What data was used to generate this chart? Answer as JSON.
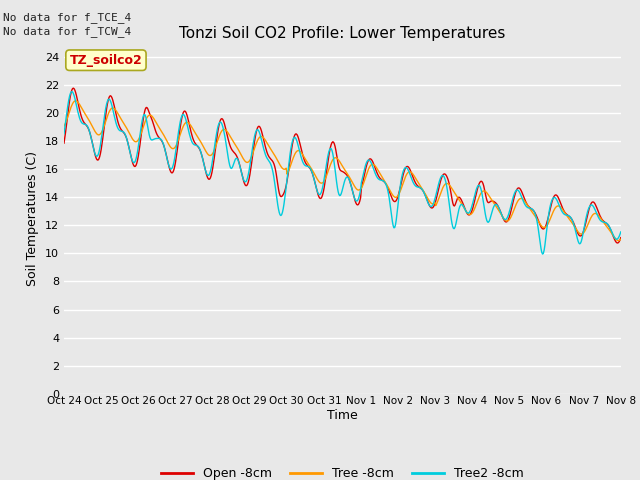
{
  "title": "Tonzi Soil CO2 Profile: Lower Temperatures",
  "ylabel": "Soil Temperatures (C)",
  "xlabel": "Time",
  "top_text_line1": "No data for f_TCE_4",
  "top_text_line2": "No data for f_TCW_4",
  "legend_box_label": "TZ_soilco2",
  "legend_entries": [
    "Open -8cm",
    "Tree -8cm",
    "Tree2 -8cm"
  ],
  "line_colors": [
    "#dd0000",
    "#ff9900",
    "#00ccdd"
  ],
  "ylim": [
    0,
    25
  ],
  "yticks": [
    0,
    2,
    4,
    6,
    8,
    10,
    12,
    14,
    16,
    18,
    20,
    22,
    24
  ],
  "xtick_labels": [
    "Oct 24",
    "Oct 25",
    "Oct 26",
    "Oct 27",
    "Oct 28",
    "Oct 29",
    "Oct 30",
    "Oct 31",
    "Nov 1",
    "Nov 2",
    "Nov 3",
    "Nov 4",
    "Nov 5",
    "Nov 6",
    "Nov 7",
    "Nov 8"
  ],
  "bg_color": "#e8e8e8",
  "plot_bg_color": "#e8e8e8",
  "grid_color": "#ffffff",
  "days": 15,
  "num_points": 720
}
